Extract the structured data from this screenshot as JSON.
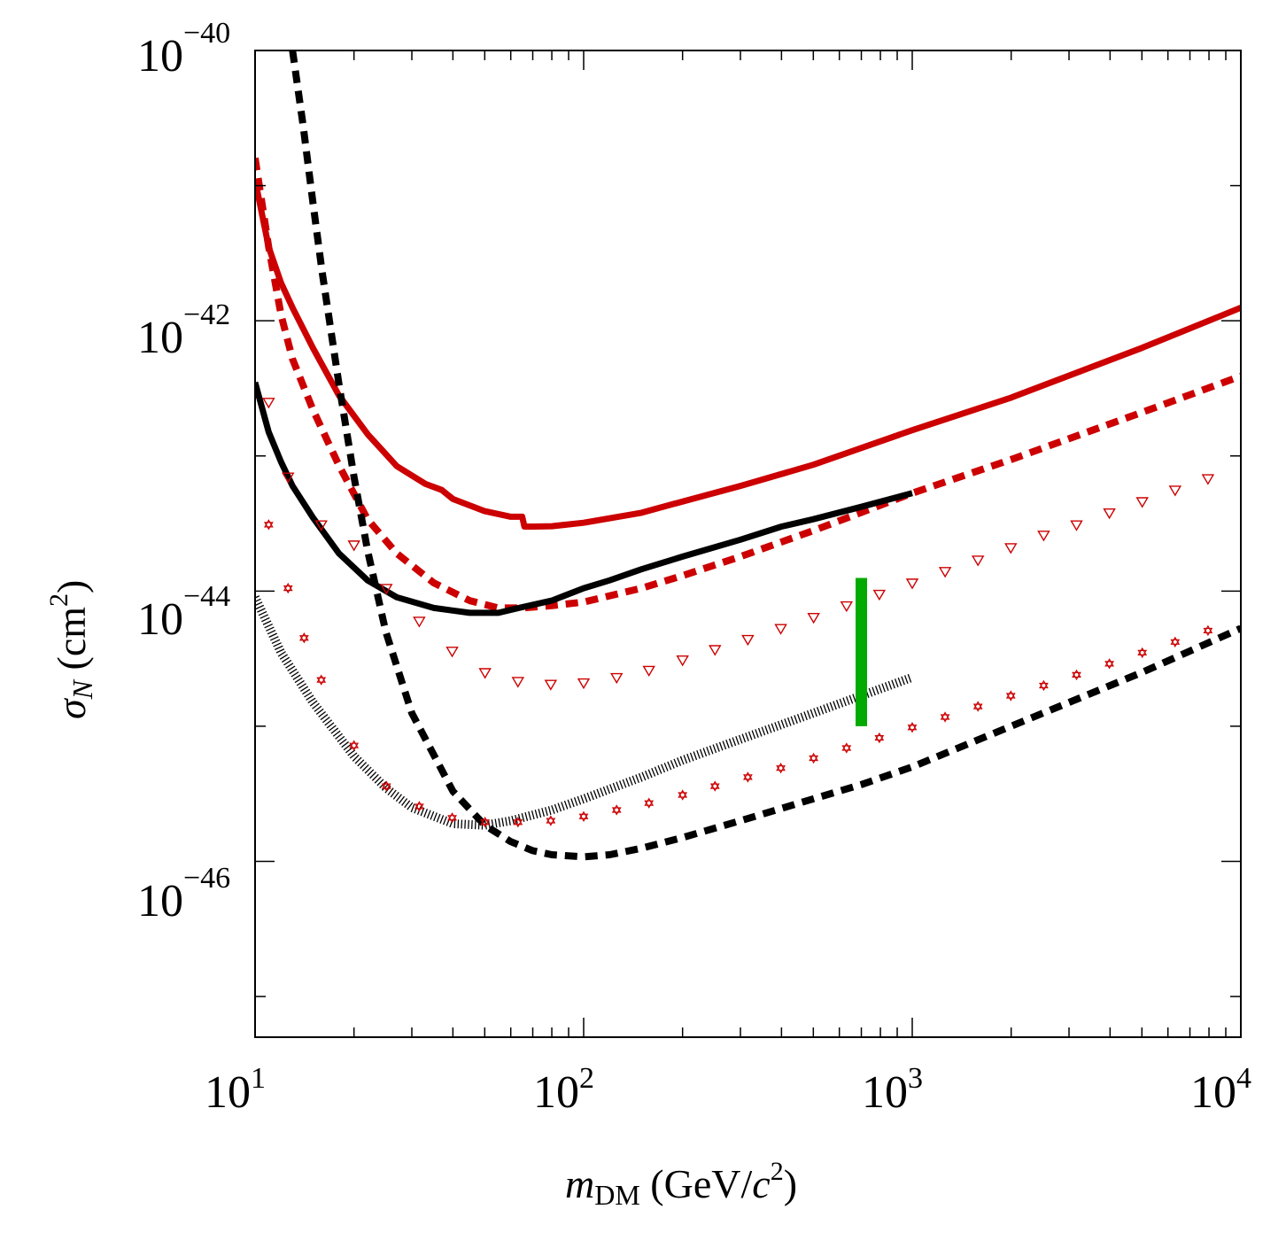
{
  "chart_data": {
    "type": "line",
    "xlabel": {
      "var": "m",
      "sub": "DM",
      "unit_open": " (GeV/",
      "unit_var": "c",
      "unit_exp": "2",
      "unit_close": ")"
    },
    "ylabel": {
      "var": "σ",
      "sub": "N",
      "unit_open": " (cm",
      "unit_exp": "2",
      "unit_close": ")"
    },
    "x_scale": "log",
    "y_scale": "log",
    "xlim": [
      10,
      10000
    ],
    "ylim": [
      5e-48,
      1e-40
    ],
    "x_ticks": [
      {
        "base": "10",
        "exp": "1",
        "value": 10
      },
      {
        "base": "10",
        "exp": "2",
        "value": 100
      },
      {
        "base": "10",
        "exp": "3",
        "value": 1000
      },
      {
        "base": "10",
        "exp": "4",
        "value": 10000
      }
    ],
    "y_ticks": [
      {
        "base": "10",
        "exp": "−40",
        "value": 1e-40
      },
      {
        "base": "10",
        "exp": "−42",
        "value": 1e-42
      },
      {
        "base": "10",
        "exp": "−44",
        "value": 1e-44
      },
      {
        "base": "10",
        "exp": "−46",
        "value": 1e-46
      }
    ],
    "grid": false,
    "series": [
      {
        "style": "solid",
        "color": "#cc0000",
        "x": [
          10,
          11,
          12,
          13,
          15,
          18,
          22,
          27,
          33,
          37,
          40,
          50,
          60,
          65,
          66,
          70,
          80,
          100,
          150,
          200,
          300,
          500,
          1000,
          2000,
          5000,
          10000
        ],
        "y": [
          1.1e-41,
          3.5e-42,
          1.9e-42,
          1.25e-42,
          6.3e-43,
          2.8e-43,
          1.45e-43,
          8.4e-44,
          6.2e-44,
          5.6e-44,
          4.8e-44,
          3.9e-44,
          3.55e-44,
          3.55e-44,
          3e-44,
          3e-44,
          3.02e-44,
          3.2e-44,
          3.8e-44,
          4.6e-44,
          6e-44,
          8.6e-44,
          1.55e-43,
          2.7e-43,
          6.3e-43,
          1.25e-42
        ]
      },
      {
        "style": "dashed",
        "color": "#cc0000",
        "x": [
          10,
          11,
          12,
          13,
          15,
          18,
          22,
          27,
          35,
          45,
          55,
          65,
          80,
          100,
          150,
          200,
          300,
          500,
          1000,
          2000,
          5000,
          10000
        ],
        "y": [
          1.6e-41,
          3.5e-42,
          1.1e-42,
          5.2e-43,
          2.2e-43,
          8.5e-44,
          3.4e-44,
          1.9e-44,
          1.15e-44,
          8.5e-45,
          7.5e-45,
          7.5e-45,
          7.8e-45,
          8.3e-45,
          1.05e-44,
          1.3e-44,
          1.8e-44,
          2.8e-44,
          5.3e-44,
          9.4e-44,
          2.1e-43,
          3.9e-43
        ]
      },
      {
        "style": "solid",
        "color": "#000000",
        "x": [
          10,
          11,
          12,
          13,
          15,
          18,
          22,
          27,
          35,
          45,
          55,
          65,
          80,
          100,
          120,
          150,
          200,
          300,
          400,
          500,
          700,
          1000
        ],
        "y": [
          3.5e-43,
          1.5e-43,
          9e-44,
          6e-44,
          3.5e-44,
          1.9e-44,
          1.2e-44,
          9e-45,
          7.5e-45,
          6.9e-45,
          6.9e-45,
          7.6e-45,
          8.5e-45,
          1.05e-44,
          1.2e-44,
          1.45e-44,
          1.8e-44,
          2.4e-44,
          3e-44,
          3.4e-44,
          4.2e-44,
          5.3e-44
        ]
      },
      {
        "style": "dashed",
        "color": "#000000",
        "x": [
          13,
          14,
          15,
          16,
          18,
          20,
          22,
          25,
          30,
          40,
          50,
          60,
          70,
          80,
          100,
          120,
          150,
          200,
          300,
          500,
          700,
          1000,
          2000,
          5000,
          10000
        ],
        "y": [
          1e-40,
          2.8e-41,
          7.5e-42,
          2.3e-42,
          3.4e-43,
          7e-44,
          2e-44,
          5e-45,
          1.25e-45,
          3.3e-46,
          1.85e-46,
          1.4e-46,
          1.2e-46,
          1.12e-46,
          1.08e-46,
          1.12e-46,
          1.25e-46,
          1.5e-46,
          2e-46,
          2.9e-46,
          3.7e-46,
          5e-46,
          1e-45,
          2.5e-45,
          5.3e-45
        ]
      },
      {
        "style": "dotted",
        "color": "#000000",
        "x": [
          10,
          12,
          15,
          20,
          25,
          30,
          40,
          50,
          60,
          80,
          100,
          150,
          200,
          300,
          500,
          1000
        ],
        "y": [
          9e-45,
          3.5e-45,
          1.5e-45,
          6e-46,
          3.5e-46,
          2.5e-46,
          1.9e-46,
          1.85e-46,
          2e-46,
          2.4e-46,
          2.9e-46,
          4.2e-46,
          5.6e-46,
          8e-46,
          1.25e-45,
          2.3e-45
        ]
      },
      {
        "style": "triangle-markers",
        "color": "#cc0000",
        "x": [
          11,
          12.6,
          15.9,
          20,
          25.1,
          31.6,
          39.8,
          50.1,
          63.1,
          79.4,
          100,
          126,
          158,
          200,
          251,
          316,
          398,
          501,
          631,
          794,
          1000,
          1259,
          1585,
          1995,
          2512,
          3162,
          3981,
          5012,
          6310,
          7943
        ],
        "y": [
          2.5e-43,
          7e-44,
          3.1e-44,
          2.2e-44,
          1.05e-44,
          6e-45,
          3.6e-45,
          2.5e-45,
          2.15e-45,
          2.05e-45,
          2.1e-45,
          2.3e-45,
          2.6e-45,
          3.1e-45,
          3.7e-45,
          4.4e-45,
          5.3e-45,
          6.4e-45,
          7.8e-45,
          9.5e-45,
          1.15e-44,
          1.4e-44,
          1.7e-44,
          2.1e-44,
          2.6e-44,
          3.1e-44,
          3.8e-44,
          4.6e-44,
          5.6e-44,
          6.8e-44
        ]
      },
      {
        "style": "star-markers",
        "color": "#cc0000",
        "x": [
          11,
          12.6,
          14.1,
          15.9,
          20,
          25.1,
          31.6,
          39.8,
          50.1,
          63.1,
          79.4,
          100,
          126,
          158,
          200,
          251,
          316,
          398,
          501,
          631,
          794,
          1000,
          1259,
          1585,
          1995,
          2512,
          3162,
          3981,
          5012,
          6310,
          7943
        ],
        "y": [
          3.1e-44,
          1.05e-44,
          4.5e-45,
          2.2e-45,
          7.2e-46,
          3.6e-46,
          2.55e-46,
          2.1e-46,
          1.95e-46,
          1.95e-46,
          2e-46,
          2.15e-46,
          2.4e-46,
          2.7e-46,
          3.1e-46,
          3.6e-46,
          4.2e-46,
          4.9e-46,
          5.8e-46,
          6.9e-46,
          8.2e-46,
          9.8e-46,
          1.17e-45,
          1.4e-45,
          1.68e-45,
          2e-45,
          2.4e-45,
          2.9e-45,
          3.5e-45,
          4.2e-45,
          5.1e-45
        ]
      },
      {
        "style": "vertical-bar",
        "color": "#00aa00",
        "x": [
          700,
          700
        ],
        "y": [
          1.25e-44,
          1e-45
        ]
      }
    ]
  }
}
